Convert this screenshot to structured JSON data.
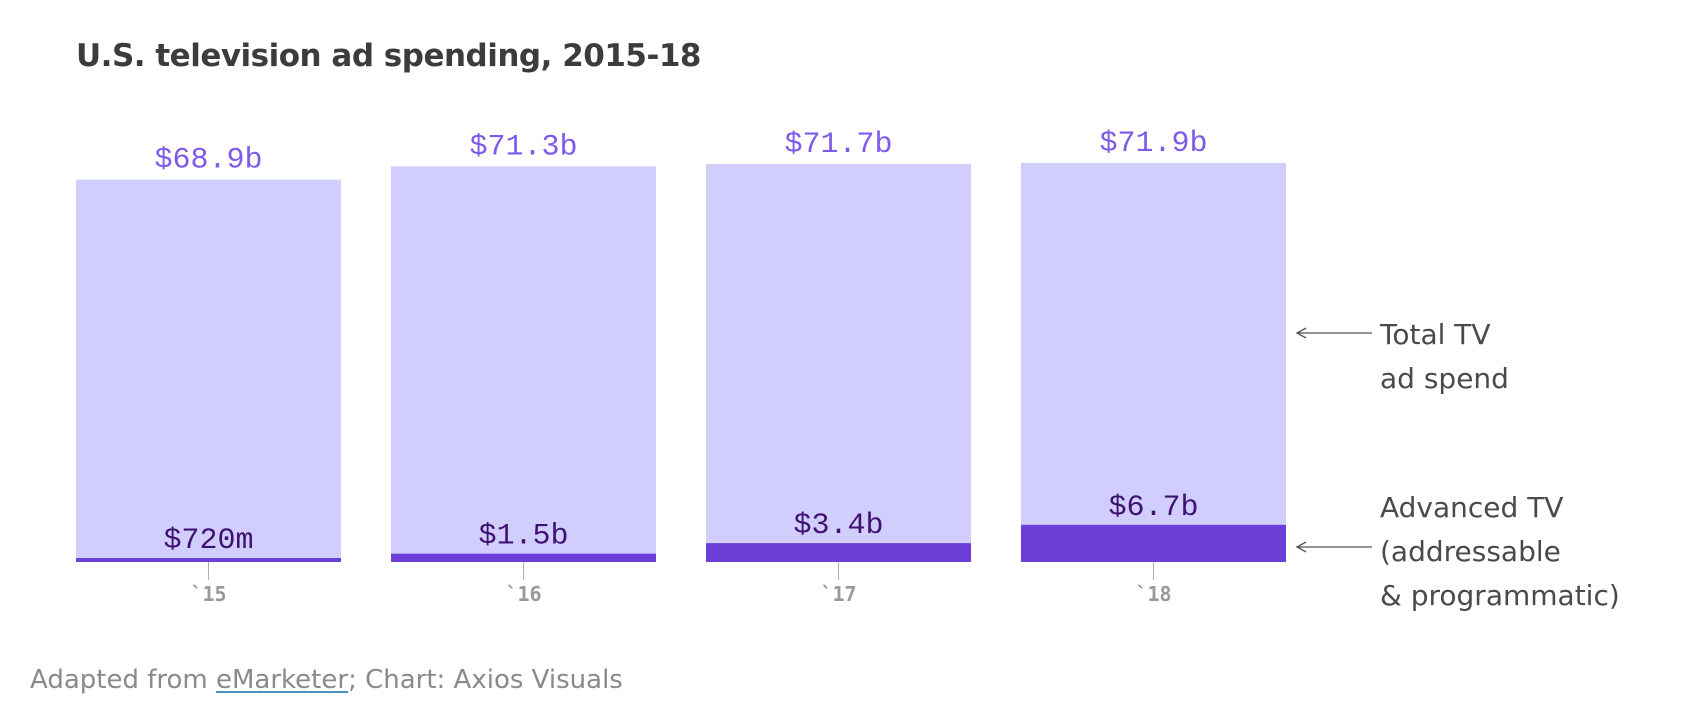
{
  "chart_data": {
    "type": "bar",
    "title": "U.S. television ad spending, 2015-18",
    "categories": [
      "`15",
      "`16",
      "`17",
      "`18"
    ],
    "series": [
      {
        "name": "Total TV ad spend",
        "values": [
          68.9,
          71.3,
          71.7,
          71.9
        ],
        "labels": [
          "$68.9b",
          "$71.3b",
          "$71.7b",
          "$71.9b"
        ],
        "color": "#d1cdfd",
        "label_color": "#7d5ae8"
      },
      {
        "name": "Advanced TV (addressable & programmatic)",
        "values": [
          0.72,
          1.5,
          3.4,
          6.7
        ],
        "labels": [
          "$720m",
          "$1.5b",
          "$3.4b",
          "$6.7b"
        ],
        "color": "#6c40d8",
        "label_color": "#3f1272"
      }
    ],
    "unit": "billion USD",
    "ylim": [
      0,
      71.9
    ],
    "overlap": true,
    "legend": [
      {
        "lines": [
          "Total TV",
          "ad spend"
        ]
      },
      {
        "lines": [
          "Advanced TV",
          "(addressable",
          "& programmatic)"
        ]
      }
    ],
    "xlabel": "",
    "ylabel": ""
  },
  "source": {
    "prefix": "Adapted from ",
    "link": "eMarketer",
    "suffix": "; Chart: Axios Visuals"
  },
  "colors": {
    "title": "#3c3c3c",
    "legend_text": "#4a4a4a",
    "tick": "#999999",
    "axis_tick": "#b0b0b0",
    "arrow": "#555555"
  }
}
